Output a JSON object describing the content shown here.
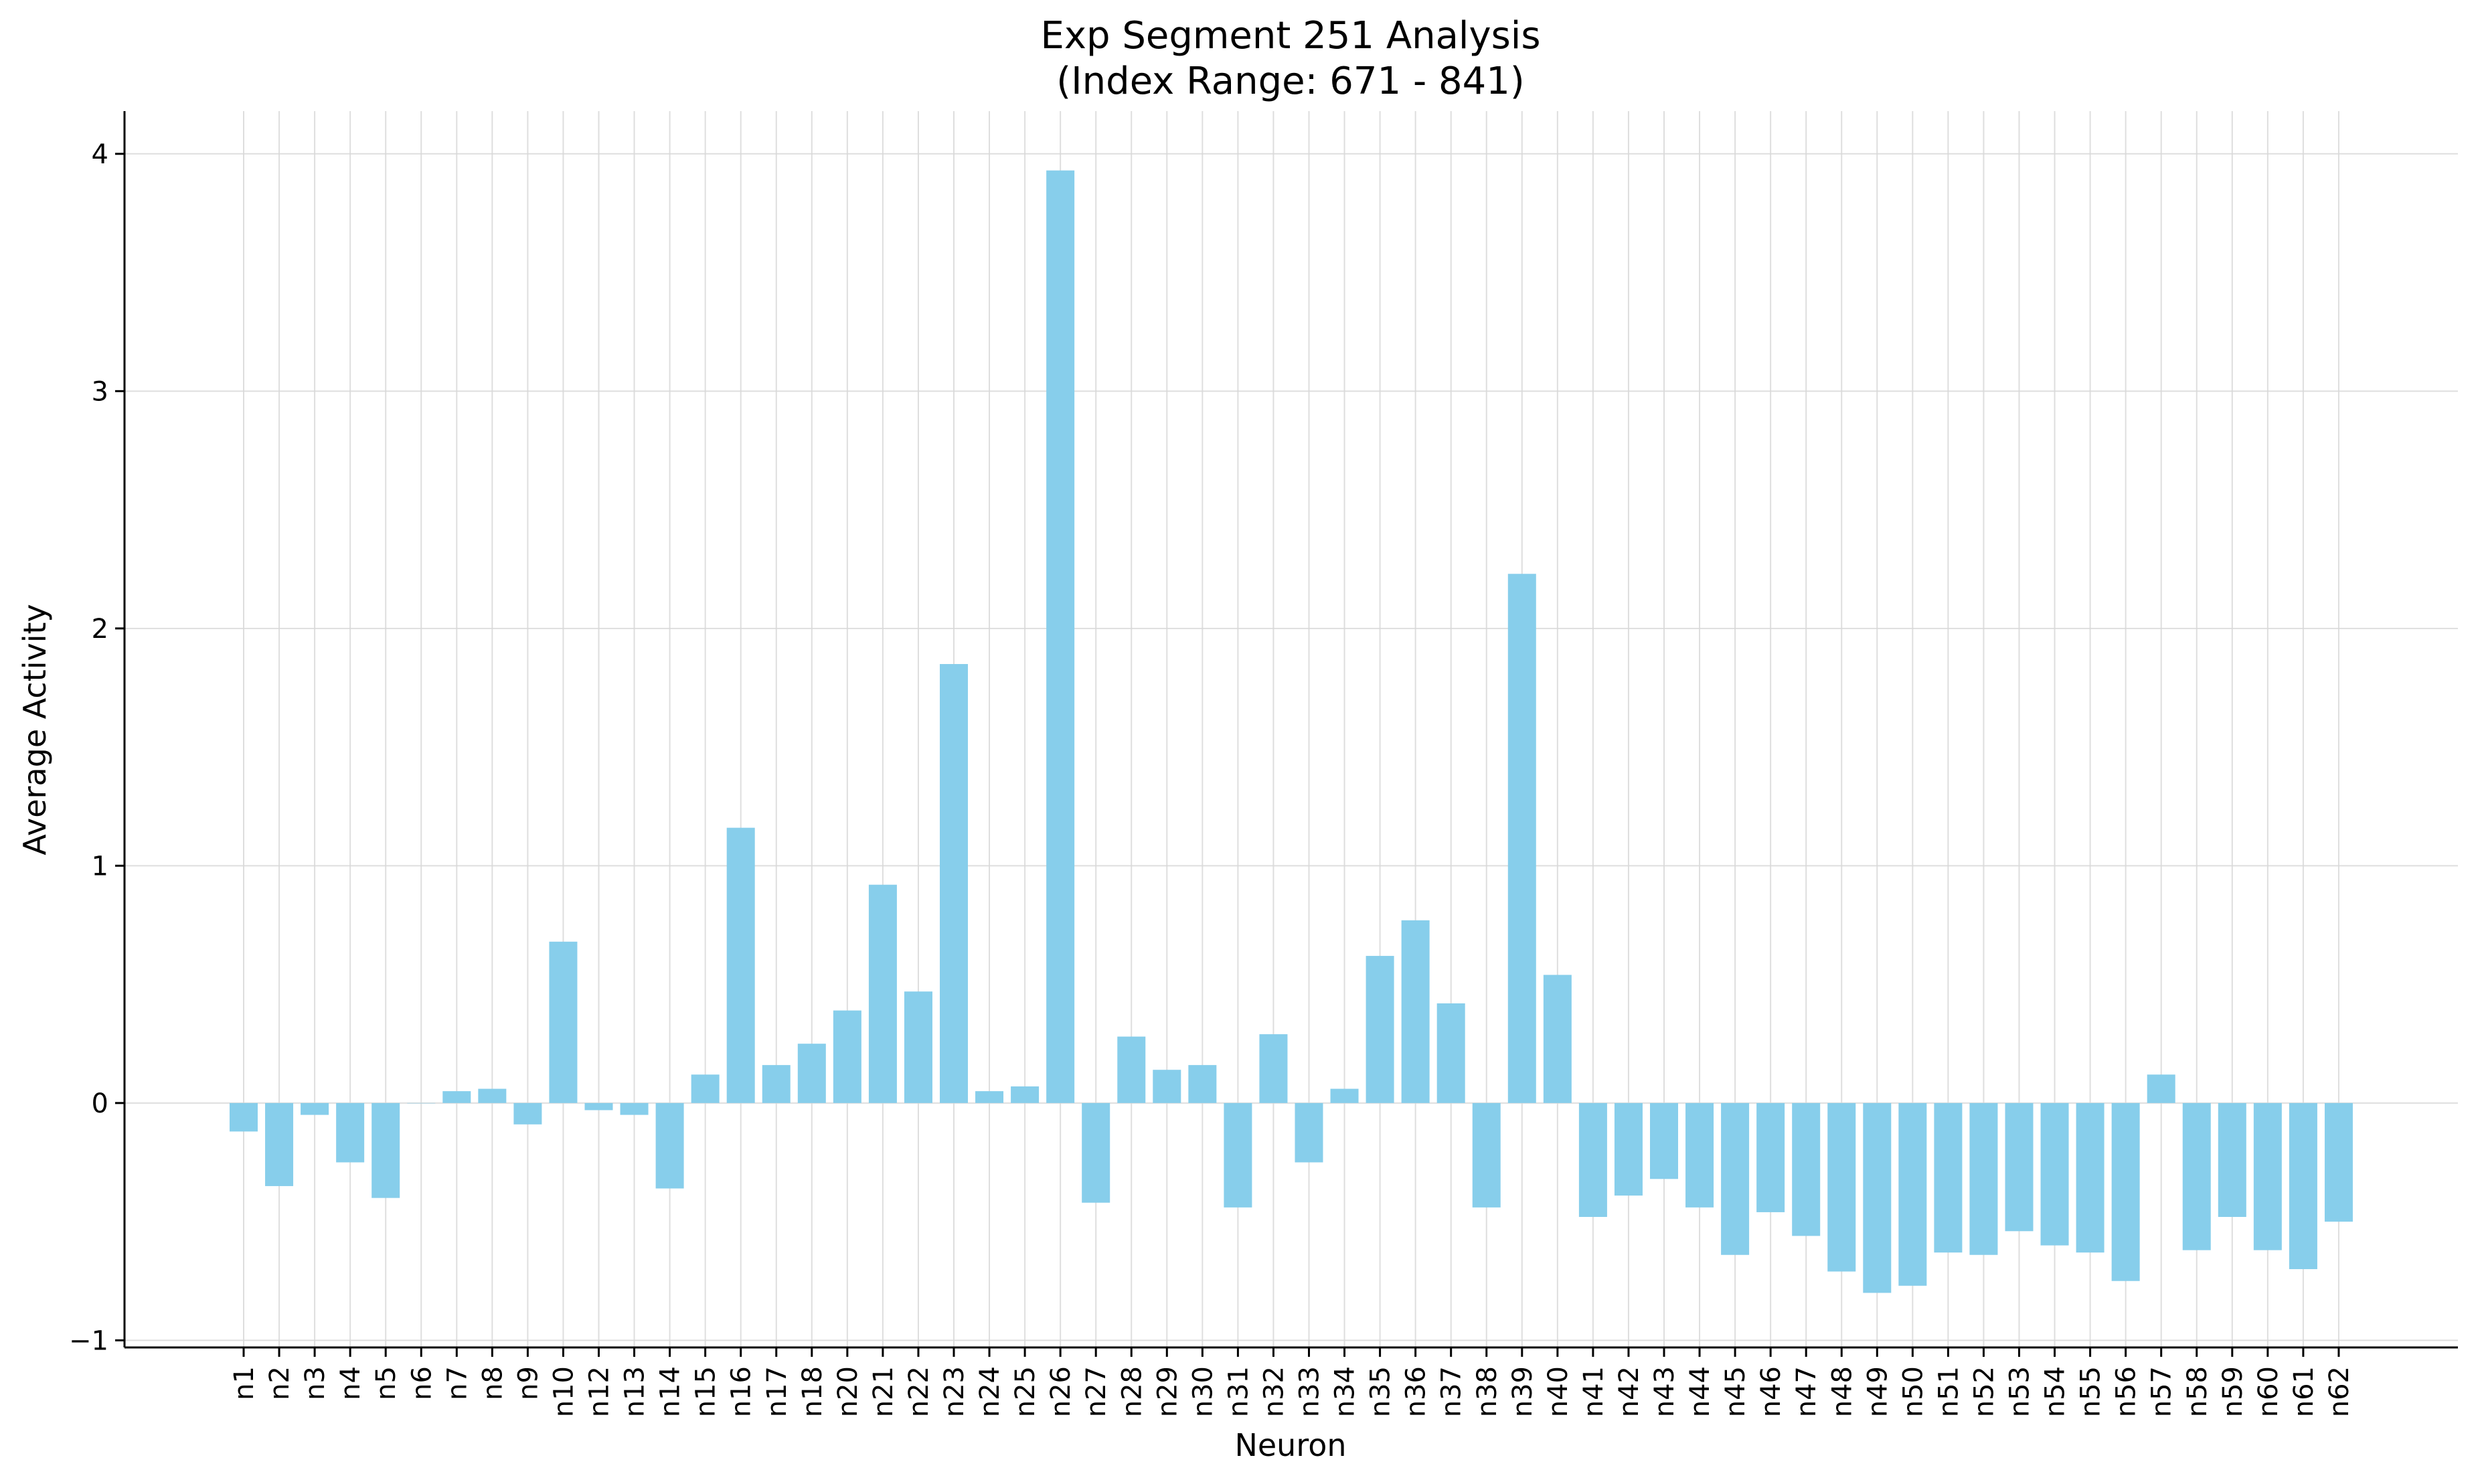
{
  "chart_data": {
    "type": "bar",
    "title": "Exp Segment 251 Analysis",
    "subtitle": "(Index Range: 671 - 841)",
    "xlabel": "Neuron",
    "ylabel": "Average Activity",
    "ylim": [
      -1.03,
      4.18
    ],
    "yticks": [
      -1,
      0,
      1,
      2,
      3,
      4
    ],
    "grid": true,
    "bar_color": "#87CEEB",
    "categories": [
      "n1",
      "n2",
      "n3",
      "n4",
      "n5",
      "n6",
      "n7",
      "n8",
      "n9",
      "n10",
      "n12",
      "n13",
      "n14",
      "n15",
      "n16",
      "n17",
      "n18",
      "n20",
      "n21",
      "n22",
      "n23",
      "n24",
      "n25",
      "n26",
      "n27",
      "n28",
      "n29",
      "n30",
      "n31",
      "n32",
      "n33",
      "n34",
      "n35",
      "n36",
      "n37",
      "n38",
      "n39",
      "n40",
      "n41",
      "n42",
      "n43",
      "n44",
      "n45",
      "n46",
      "n47",
      "n48",
      "n49",
      "n50",
      "n51",
      "n52",
      "n53",
      "n54",
      "n55",
      "n56",
      "n57",
      "n58",
      "n59",
      "n60",
      "n61",
      "n62"
    ],
    "values": [
      -0.12,
      -0.35,
      -0.05,
      -0.25,
      -0.4,
      0.0,
      0.05,
      0.06,
      -0.09,
      0.68,
      -0.03,
      -0.05,
      -0.36,
      0.12,
      1.16,
      0.16,
      0.25,
      0.39,
      0.92,
      0.47,
      1.85,
      0.05,
      0.07,
      3.93,
      -0.42,
      0.28,
      0.14,
      0.16,
      -0.44,
      0.29,
      -0.25,
      0.06,
      0.62,
      0.77,
      0.42,
      -0.44,
      2.23,
      0.54,
      -0.48,
      -0.39,
      -0.32,
      -0.44,
      -0.64,
      -0.46,
      -0.56,
      -0.71,
      -0.8,
      -0.77,
      -0.63,
      -0.64,
      -0.54,
      -0.6,
      -0.63,
      -0.75,
      0.12,
      -0.62,
      -0.48,
      -0.62,
      -0.7,
      -0.5
    ]
  }
}
